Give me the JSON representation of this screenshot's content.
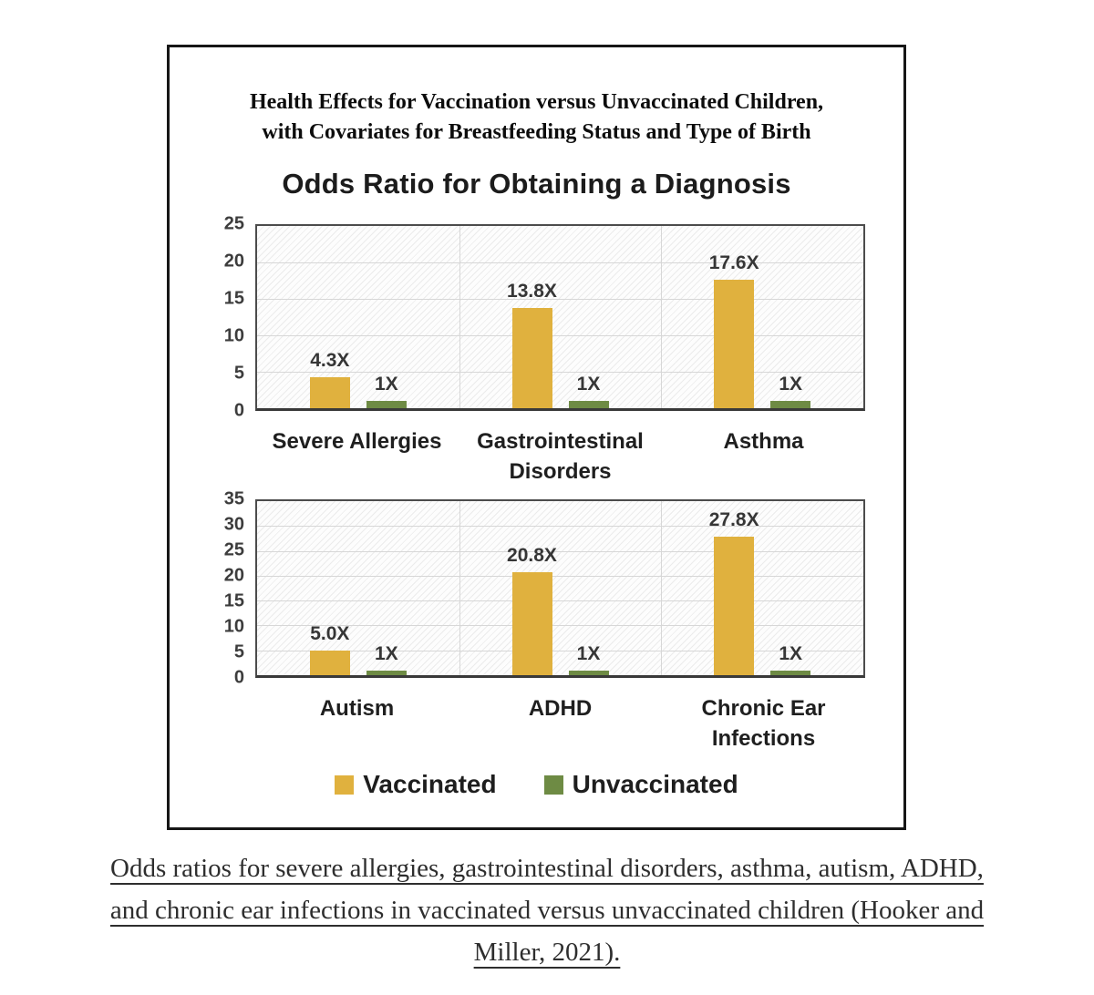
{
  "figure": {
    "title_line1": "Health Effects for Vaccination versus Unvaccinated Children,",
    "title_line2": "with Covariates for Breastfeeding Status and Type of Birth",
    "subtitle": "Odds Ratio for Obtaining a Diagnosis"
  },
  "colors": {
    "vaccinated": "#E0B13E",
    "unvaccinated": "#6E8B44",
    "plot_border": "#4c4c4c",
    "gridline": "#d7d7d7",
    "text_dark": "#1f1f1f"
  },
  "chart_data": [
    {
      "type": "bar",
      "title": "Odds Ratio for Obtaining a Diagnosis",
      "categories": [
        "Severe Allergies",
        "Gastrointestinal Disorders",
        "Asthma"
      ],
      "series": [
        {
          "name": "Vaccinated",
          "color": "#E0B13E",
          "values": [
            4.3,
            13.8,
            17.6
          ],
          "labels": [
            "4.3X",
            "13.8X",
            "17.6X"
          ]
        },
        {
          "name": "Unvaccinated",
          "color": "#6E8B44",
          "values": [
            1,
            1,
            1
          ],
          "labels": [
            "1X",
            "1X",
            "1X"
          ]
        }
      ],
      "xlabel": "",
      "ylabel": "",
      "ylim": [
        0,
        25
      ],
      "yticks": [
        0,
        5,
        10,
        15,
        20,
        25
      ],
      "grid": true,
      "legend_position": "below-second-chart"
    },
    {
      "type": "bar",
      "title": "",
      "categories": [
        "Autism",
        "ADHD",
        "Chronic Ear Infections"
      ],
      "series": [
        {
          "name": "Vaccinated",
          "color": "#E0B13E",
          "values": [
            5.0,
            20.8,
            27.8
          ],
          "labels": [
            "5.0X",
            "20.8X",
            "27.8X"
          ]
        },
        {
          "name": "Unvaccinated",
          "color": "#6E8B44",
          "values": [
            1,
            1,
            1
          ],
          "labels": [
            "1X",
            "1X",
            "1X"
          ]
        }
      ],
      "xlabel": "",
      "ylabel": "",
      "ylim": [
        0,
        35
      ],
      "yticks": [
        0,
        5,
        10,
        15,
        20,
        25,
        30,
        35
      ],
      "grid": true,
      "legend_position": "below"
    }
  ],
  "legend": {
    "items": [
      {
        "label": "Vaccinated",
        "color": "#E0B13E"
      },
      {
        "label": "Unvaccinated",
        "color": "#6E8B44"
      }
    ]
  },
  "caption": {
    "line1": "Odds ratios for severe allergies, gastrointestinal disorders, asthma, autism, ADHD,",
    "line2": "and chronic ear infections in vaccinated versus unvaccinated children (Hooker and",
    "line3": "Miller, 2021).",
    "citation": "Hooker and Miller, 2021"
  }
}
